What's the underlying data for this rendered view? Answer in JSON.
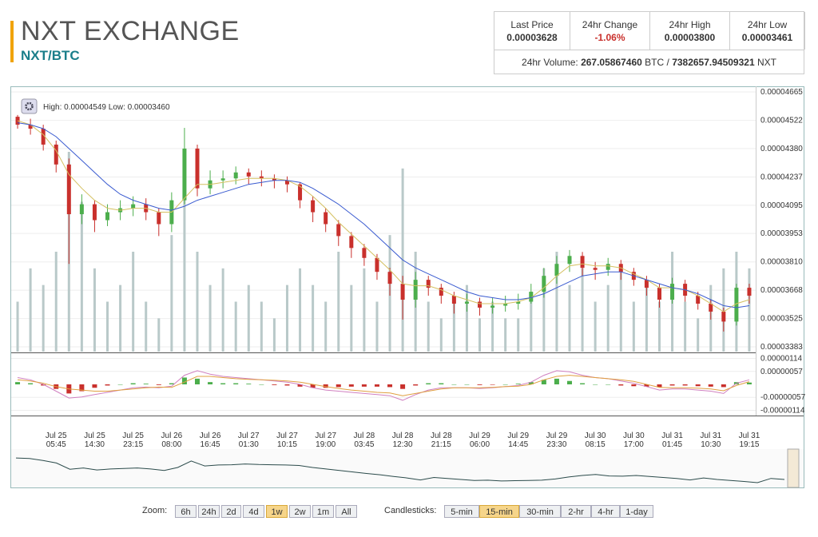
{
  "header": {
    "title": "NXT EXCHANGE",
    "pair": "NXT/BTC"
  },
  "stats": {
    "cells": [
      {
        "label": "Last Price",
        "value": "0.00003628"
      },
      {
        "label": "24hr Change",
        "value": "-1.06%"
      },
      {
        "label": "24hr High",
        "value": "0.00003800"
      },
      {
        "label": "24hr Low",
        "value": "0.00003461"
      }
    ],
    "volume_label": "24hr Volume:",
    "volume_btc": "267.05867460",
    "btc": "BTC /",
    "volume_nxt": "7382657.94509321",
    "nxt": "NXT"
  },
  "chart_data": {
    "type": "candlestick",
    "annotation": {
      "high_label": "High:",
      "high": "0.00004549",
      "low_label": "Low:",
      "low": "0.00003460"
    },
    "categories": [
      null,
      null,
      null,
      [
        "Jul 25",
        "05:45"
      ],
      null,
      null,
      [
        "Jul 25",
        "14:30"
      ],
      null,
      null,
      [
        "Jul 25",
        "23:15"
      ],
      null,
      null,
      [
        "Jul 26",
        "08:00"
      ],
      null,
      null,
      [
        "Jul 26",
        "16:45"
      ],
      null,
      null,
      [
        "Jul 27",
        "01:30"
      ],
      null,
      null,
      [
        "Jul 27",
        "10:15"
      ],
      null,
      null,
      [
        "Jul 27",
        "19:00"
      ],
      null,
      null,
      [
        "Jul 28",
        "03:45"
      ],
      null,
      null,
      [
        "Jul 28",
        "12:30"
      ],
      null,
      null,
      [
        "Jul 28",
        "21:15"
      ],
      null,
      null,
      [
        "Jul 29",
        "06:00"
      ],
      null,
      null,
      [
        "Jul 29",
        "14:45"
      ],
      null,
      null,
      [
        "Jul 29",
        "23:30"
      ],
      null,
      null,
      [
        "Jul 30",
        "08:15"
      ],
      null,
      null,
      [
        "Jul 30",
        "17:00"
      ],
      null,
      null,
      [
        "Jul 31",
        "01:45"
      ],
      null,
      null,
      [
        "Jul 31",
        "10:30"
      ],
      null,
      null,
      [
        "Jul 31",
        "19:15"
      ]
    ],
    "open": [
      4.54e-05,
      4.5e-05,
      4.48e-05,
      4.4e-05,
      4.3e-05,
      4.05e-05,
      4.1e-05,
      4.02e-05,
      4.06e-05,
      4.08e-05,
      4.1e-05,
      4.06e-05,
      4e-05,
      4.12e-05,
      4.38e-05,
      4.18e-05,
      4.22e-05,
      4.23e-05,
      4.26e-05,
      4.24e-05,
      4.23e-05,
      4.22e-05,
      4.2e-05,
      4.12e-05,
      4.06e-05,
      4e-05,
      3.94e-05,
      3.88e-05,
      3.83e-05,
      3.76e-05,
      3.7e-05,
      3.62e-05,
      3.72e-05,
      3.68e-05,
      3.64e-05,
      3.6e-05,
      3.61e-05,
      3.58e-05,
      3.59e-05,
      3.6e-05,
      3.61e-05,
      3.66e-05,
      3.74e-05,
      3.8e-05,
      3.84e-05,
      3.78e-05,
      3.77e-05,
      3.8e-05,
      3.76e-05,
      3.72e-05,
      3.68e-05,
      3.62e-05,
      3.7e-05,
      3.64e-05,
      3.6e-05,
      3.56e-05,
      3.51e-05,
      3.68e-05
    ],
    "high": [
      4.549e-05,
      4.53e-05,
      4.5e-05,
      4.42e-05,
      4.33e-05,
      4.15e-05,
      4.12e-05,
      4.1e-05,
      4.12e-05,
      4.14e-05,
      4.13e-05,
      4.08e-05,
      4.16e-05,
      4.484e-05,
      4.4e-05,
      4.27e-05,
      4.27e-05,
      4.29e-05,
      4.28e-05,
      4.27e-05,
      4.25e-05,
      4.24e-05,
      4.21e-05,
      4.14e-05,
      4.08e-05,
      4.02e-05,
      3.96e-05,
      3.9e-05,
      3.85e-05,
      3.78e-05,
      3.74e-05,
      3.76e-05,
      3.74e-05,
      3.7e-05,
      3.66e-05,
      3.65e-05,
      3.63e-05,
      3.63e-05,
      3.64e-05,
      3.65e-05,
      3.7e-05,
      3.78e-05,
      3.84e-05,
      3.87e-05,
      3.86e-05,
      3.81e-05,
      3.83e-05,
      3.82e-05,
      3.78e-05,
      3.74e-05,
      3.7e-05,
      3.73e-05,
      3.72e-05,
      3.66e-05,
      3.62e-05,
      3.58e-05,
      3.7e-05,
      3.7e-05
    ],
    "low": [
      4.48e-05,
      4.45e-05,
      4.37e-05,
      4.26e-05,
      3.8e-05,
      4e-05,
      3.96e-05,
      3.99e-05,
      4.02e-05,
      4.04e-05,
      4.02e-05,
      3.94e-05,
      3.96e-05,
      4.1e-05,
      4.14e-05,
      4.15e-05,
      4.18e-05,
      4.2e-05,
      4.2e-05,
      4.19e-05,
      4.18e-05,
      4.16e-05,
      4.08e-05,
      4.01e-05,
      3.96e-05,
      3.89e-05,
      3.83e-05,
      3.79e-05,
      3.72e-05,
      3.64e-05,
      3.52e-05,
      3.58e-05,
      3.64e-05,
      3.6e-05,
      3.55e-05,
      3.56e-05,
      3.54e-05,
      3.55e-05,
      3.56e-05,
      3.57e-05,
      3.6e-05,
      3.63e-05,
      3.7e-05,
      3.76e-05,
      3.74e-05,
      3.72e-05,
      3.74e-05,
      3.72e-05,
      3.69e-05,
      3.64e-05,
      3.58e-05,
      3.6e-05,
      3.61e-05,
      3.57e-05,
      3.52e-05,
      3.46e-05,
      3.49e-05,
      3.6e-05
    ],
    "close": [
      4.5e-05,
      4.48e-05,
      4.4e-05,
      4.3e-05,
      4.05e-05,
      4.1e-05,
      4.02e-05,
      4.06e-05,
      4.08e-05,
      4.1e-05,
      4.06e-05,
      4e-05,
      4.12e-05,
      4.38e-05,
      4.18e-05,
      4.22e-05,
      4.23e-05,
      4.26e-05,
      4.24e-05,
      4.23e-05,
      4.22e-05,
      4.2e-05,
      4.12e-05,
      4.06e-05,
      4e-05,
      3.94e-05,
      3.88e-05,
      3.83e-05,
      3.76e-05,
      3.7e-05,
      3.62e-05,
      3.72e-05,
      3.68e-05,
      3.64e-05,
      3.6e-05,
      3.61e-05,
      3.58e-05,
      3.59e-05,
      3.6e-05,
      3.61e-05,
      3.66e-05,
      3.74e-05,
      3.8e-05,
      3.84e-05,
      3.78e-05,
      3.77e-05,
      3.8e-05,
      3.76e-05,
      3.72e-05,
      3.68e-05,
      3.62e-05,
      3.7e-05,
      3.64e-05,
      3.6e-05,
      3.56e-05,
      3.51e-05,
      3.68e-05,
      3.64e-05
    ],
    "volume": [
      3,
      5,
      4,
      6,
      12,
      9,
      5,
      3,
      4,
      6,
      3,
      2,
      7,
      10,
      6,
      4,
      5,
      3,
      4,
      3,
      2,
      4,
      5,
      4,
      3,
      6,
      4,
      5,
      3,
      7,
      11,
      6,
      3,
      2,
      3,
      4,
      2,
      3,
      2,
      2,
      3,
      5,
      6,
      4,
      5,
      3,
      4,
      5,
      3,
      4,
      3,
      6,
      3,
      2,
      4,
      5,
      6,
      5
    ],
    "ma_slow": [
      4.51e-05,
      4.5e-05,
      4.48e-05,
      4.44e-05,
      4.38e-05,
      4.32e-05,
      4.26e-05,
      4.2e-05,
      4.15e-05,
      4.12e-05,
      4.1e-05,
      4.08e-05,
      4.07e-05,
      4.09e-05,
      4.12e-05,
      4.14e-05,
      4.16e-05,
      4.18e-05,
      4.2e-05,
      4.21e-05,
      4.22e-05,
      4.22e-05,
      4.21e-05,
      4.18e-05,
      4.14e-05,
      4.1e-05,
      4.05e-05,
      4e-05,
      3.94e-05,
      3.88e-05,
      3.82e-05,
      3.78e-05,
      3.75e-05,
      3.72e-05,
      3.69e-05,
      3.66e-05,
      3.64e-05,
      3.63e-05,
      3.62e-05,
      3.62e-05,
      3.63e-05,
      3.65e-05,
      3.68e-05,
      3.71e-05,
      3.74e-05,
      3.75e-05,
      3.76e-05,
      3.76e-05,
      3.74e-05,
      3.72e-05,
      3.7e-05,
      3.68e-05,
      3.67e-05,
      3.65e-05,
      3.62e-05,
      3.59e-05,
      3.58e-05,
      3.59e-05
    ],
    "ma_fast": [
      4.52e-05,
      4.5e-05,
      4.45e-05,
      4.37e-05,
      4.25e-05,
      4.18e-05,
      4.12e-05,
      4.08e-05,
      4.07e-05,
      4.08e-05,
      4.08e-05,
      4.06e-05,
      4.06e-05,
      4.13e-05,
      4.2e-05,
      4.2e-05,
      4.21e-05,
      4.22e-05,
      4.23e-05,
      4.23e-05,
      4.23e-05,
      4.22e-05,
      4.19e-05,
      4.14e-05,
      4.08e-05,
      4.01e-05,
      3.95e-05,
      3.89e-05,
      3.83e-05,
      3.77e-05,
      3.7e-05,
      3.69e-05,
      3.69e-05,
      3.67e-05,
      3.64e-05,
      3.62e-05,
      3.6e-05,
      3.6e-05,
      3.6e-05,
      3.61e-05,
      3.63e-05,
      3.68e-05,
      3.74e-05,
      3.79e-05,
      3.8e-05,
      3.79e-05,
      3.79e-05,
      3.78e-05,
      3.75e-05,
      3.72e-05,
      3.68e-05,
      3.68e-05,
      3.67e-05,
      3.64e-05,
      3.6e-05,
      3.56e-05,
      3.6e-05,
      3.62e-05
    ],
    "ylim": [
      3.383e-05,
      4.665e-05
    ],
    "yticks": [
      3.383e-05,
      3.525e-05,
      3.668e-05,
      {
        "value": 3.81e-05,
        "label": "0.00003810"
      },
      3.953e-05,
      4.095e-05,
      4.237e-05,
      {
        "value": 4.38e-05,
        "label": "0.00004380"
      },
      4.522e-05,
      4.665e-05
    ],
    "up_color": "#4cae4c",
    "down_color": "#c9302c",
    "volume_color": "#b9c9c9",
    "ma_slow_color": "#3a5bd0",
    "ma_fast_color": "#d4c060",
    "macd_pane": {
      "ylim": [
        -1.3e-06,
        1.3e-06
      ],
      "yticks": [
        -1.14e-06,
        {
          "value": -5.7e-07,
          "label": "-0.00000057"
        },
        {
          "value": 5.7e-07,
          "label": "0.00000057"
        },
        1.14e-06
      ],
      "histogram": [
        1e-07,
        5e-08,
        -5e-08,
        -2e-07,
        -4e-07,
        -3e-07,
        -1.5e-07,
        -5e-08,
        0,
        5e-08,
        3e-08,
        -3e-08,
        5e-08,
        3e-07,
        2.5e-07,
        1e-07,
        5e-08,
        5e-08,
        3e-08,
        0,
        -3e-08,
        -5e-08,
        -1e-07,
        -1.5e-07,
        -1.5e-07,
        -1.2e-07,
        -1e-07,
        -1e-07,
        -1e-07,
        -1.2e-07,
        -2e-07,
        -5e-08,
        5e-08,
        5e-08,
        0,
        0,
        -3e-08,
        -2e-08,
        0,
        3e-08,
        1e-07,
        2e-07,
        2.5e-07,
        1.5e-07,
        5e-08,
        0,
        0,
        -5e-08,
        -8e-08,
        -1e-07,
        -1.2e-07,
        -5e-08,
        -5e-08,
        -8e-08,
        -1e-07,
        -1.2e-07,
        1e-07,
        8e-08
      ],
      "macd": [
        3e-07,
        2e-07,
        0,
        -3e-07,
        -6e-07,
        -5.5e-07,
        -4.5e-07,
        -3.5e-07,
        -2.5e-07,
        -1.5e-07,
        -1.2e-07,
        -1.5e-07,
        -8e-08,
        4e-07,
        6e-07,
        4.5e-07,
        3.5e-07,
        3e-07,
        2.5e-07,
        2e-07,
        1.5e-07,
        1e-07,
        0,
        -1.5e-07,
        -2.5e-07,
        -3e-07,
        -3.5e-07,
        -4e-07,
        -4.5e-07,
        -5e-07,
        -7e-07,
        -4.5e-07,
        -2.5e-07,
        -1.5e-07,
        -1.5e-07,
        -1.5e-07,
        -1.8e-07,
        -1.5e-07,
        -1e-07,
        -5e-08,
        1e-07,
        4e-07,
        6e-07,
        5.5e-07,
        4e-07,
        3e-07,
        2.5e-07,
        1.5e-07,
        5e-08,
        -1e-07,
        -2.5e-07,
        -2e-07,
        -2e-07,
        -2.5e-07,
        -3e-07,
        -4e-07,
        5e-08,
        2e-07
      ],
      "signal": [
        2e-07,
        1.5e-07,
        5e-08,
        -1e-07,
        -2e-07,
        -2.5e-07,
        -3e-07,
        -3e-07,
        -2.5e-07,
        -2e-07,
        -1.5e-07,
        -1.2e-07,
        -1.3e-07,
        1e-07,
        3.5e-07,
        3.5e-07,
        3e-07,
        2.5e-07,
        2.2e-07,
        2e-07,
        1.8e-07,
        1.5e-07,
        1e-07,
        0,
        -1e-07,
        -1.8e-07,
        -2.5e-07,
        -3e-07,
        -3.5e-07,
        -3.8e-07,
        -5e-07,
        -4e-07,
        -3e-07,
        -2e-07,
        -1.5e-07,
        -1.5e-07,
        -1.5e-07,
        -1.3e-07,
        -1e-07,
        -8e-08,
        0,
        2e-07,
        3.5e-07,
        4e-07,
        3.5e-07,
        3e-07,
        2.5e-07,
        2e-07,
        1.3e-07,
        0,
        -1.3e-07,
        -1.5e-07,
        -1.5e-07,
        -1.7e-07,
        -2e-07,
        -2.8e-07,
        -5e-08,
        1.2e-07
      ],
      "macd_color": "#d080c0",
      "signal_color": "#e0a040"
    }
  },
  "controls": {
    "zoom_label": "Zoom:",
    "zoom": [
      "6h",
      "24h",
      "2d",
      "4d",
      "1w",
      "2w",
      "1m",
      "All"
    ],
    "zoom_active": 4,
    "candle_label": "Candlesticks:",
    "candles": [
      "5-min",
      "15-min",
      "30-min",
      "2-hr",
      "4-hr",
      "1-day"
    ],
    "candle_active": 1
  }
}
